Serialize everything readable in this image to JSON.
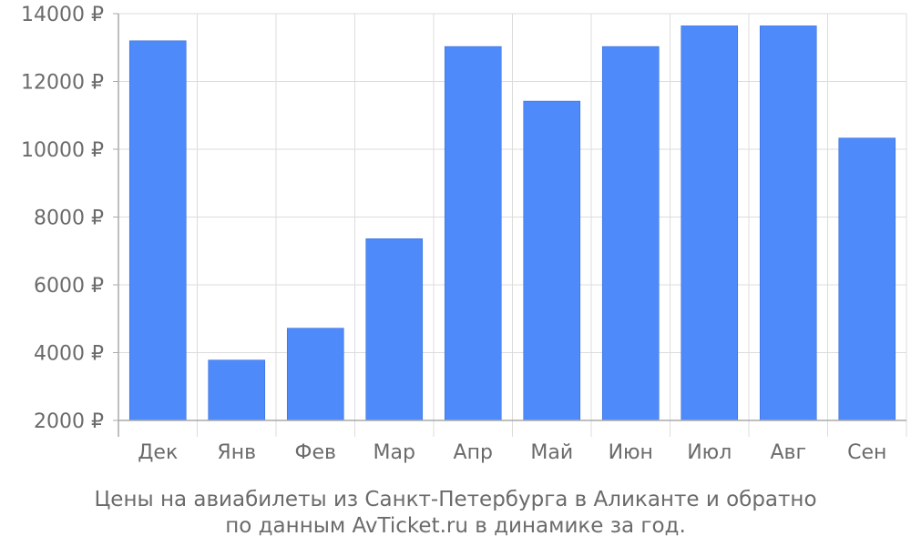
{
  "chart_data": {
    "type": "bar",
    "categories": [
      "Дек",
      "Янв",
      "Фев",
      "Мар",
      "Апр",
      "Май",
      "Июн",
      "Июл",
      "Авг",
      "Сен"
    ],
    "values": [
      13200,
      3780,
      4720,
      7360,
      13030,
      11420,
      13030,
      13640,
      13640,
      10330
    ],
    "ylim": [
      2000,
      14000
    ],
    "yticks": [
      2000,
      4000,
      6000,
      8000,
      10000,
      12000,
      14000
    ],
    "ytick_suffix": " ₽",
    "grid": true,
    "bar_color": "#4e8af9",
    "caption": [
      "Цены на авиабилеты из Санкт-Петербурга в Аликанте и обратно",
      "по данным AvTicket.ru в динамике за год."
    ]
  }
}
